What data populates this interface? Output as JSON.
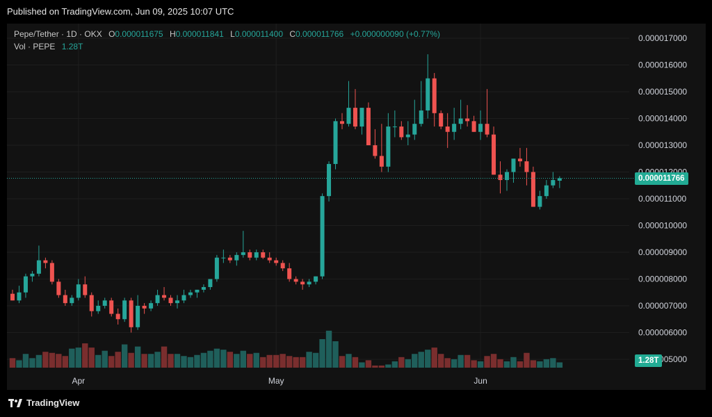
{
  "header": {
    "published": "Published on TradingView.com, Jun 09, 2025 10:07 UTC"
  },
  "legend": {
    "symbol": "Pepe/Tether · 1D · OKX",
    "o_label": "O",
    "o_value": "0.000011675",
    "h_label": "H",
    "h_value": "0.000011841",
    "l_label": "L",
    "l_value": "0.000011400",
    "c_label": "C",
    "c_value": "0.000011766",
    "change": "+0.000000090 (+0.77%)",
    "vol_label": "Vol · PEPE",
    "vol_value": "1.28T"
  },
  "badges": {
    "price": "0.000011766",
    "volume": "1.28T"
  },
  "footer": {
    "brand": "TradingView"
  },
  "colors": {
    "up": "#26a69a",
    "down": "#ef5350",
    "vol_up": "#1f5f5b",
    "vol_down": "#7a2e2e",
    "badge": "#22ab94"
  },
  "chart_data": {
    "type": "candlestick",
    "y_ticks": [
      "0.000017000",
      "0.000016000",
      "0.000015000",
      "0.000014000",
      "0.000013000",
      "0.000012000",
      "0.000011000",
      "0.000010000",
      "0.000009000",
      "0.000008000",
      "0.000007000",
      "0.000006000",
      "0.000005000"
    ],
    "x_ticks": [
      {
        "label": "Apr",
        "index": 10
      },
      {
        "label": "May",
        "index": 40
      },
      {
        "label": "Jun",
        "index": 71
      }
    ],
    "last_price": 11.766,
    "price_unit": "1e-6 USDT",
    "ohlc_scale": "values ×1e-6",
    "ohlcv": [
      [
        7.45,
        7.6,
        7.2,
        7.2,
        5.2
      ],
      [
        7.2,
        7.75,
        7.1,
        7.5,
        5.0
      ],
      [
        7.5,
        8.2,
        7.3,
        8.1,
        5.6
      ],
      [
        8.1,
        8.3,
        7.9,
        8.2,
        5.2
      ],
      [
        8.2,
        9.25,
        8.1,
        8.7,
        5.5
      ],
      [
        8.7,
        8.8,
        8.4,
        8.6,
        5.8
      ],
      [
        8.6,
        8.7,
        7.8,
        7.9,
        5.7
      ],
      [
        7.9,
        8.0,
        7.3,
        7.4,
        5.6
      ],
      [
        7.4,
        7.6,
        7.0,
        7.1,
        5.4
      ],
      [
        7.1,
        7.4,
        7.0,
        7.3,
        6.1
      ],
      [
        7.3,
        8.0,
        7.2,
        7.8,
        6.2
      ],
      [
        7.8,
        8.1,
        7.3,
        7.4,
        6.6
      ],
      [
        7.4,
        7.5,
        6.6,
        6.8,
        6.2
      ],
      [
        6.8,
        7.2,
        6.7,
        7.0,
        5.5
      ],
      [
        7.0,
        7.3,
        6.9,
        7.2,
        5.9
      ],
      [
        7.2,
        7.3,
        6.6,
        6.7,
        5.4
      ],
      [
        6.7,
        6.9,
        6.3,
        6.5,
        5.8
      ],
      [
        6.5,
        7.3,
        6.4,
        7.2,
        6.5
      ],
      [
        7.2,
        7.3,
        6.0,
        6.2,
        5.7
      ],
      [
        6.2,
        7.4,
        6.1,
        7.0,
        6.3
      ],
      [
        7.0,
        7.1,
        6.7,
        6.9,
        5.6
      ],
      [
        6.9,
        7.2,
        6.8,
        7.1,
        5.6
      ],
      [
        7.1,
        7.6,
        7.0,
        7.4,
        5.8
      ],
      [
        7.4,
        7.7,
        7.2,
        7.3,
        6.3
      ],
      [
        7.3,
        7.4,
        7.0,
        7.1,
        5.6
      ],
      [
        7.1,
        7.4,
        6.9,
        7.2,
        5.6
      ],
      [
        7.2,
        7.6,
        7.1,
        7.4,
        5.4
      ],
      [
        7.4,
        7.6,
        7.3,
        7.5,
        5.3
      ],
      [
        7.5,
        7.6,
        7.3,
        7.6,
        5.5
      ],
      [
        7.6,
        7.8,
        7.5,
        7.7,
        5.7
      ],
      [
        7.7,
        8.0,
        7.6,
        8.0,
        5.9
      ],
      [
        8.0,
        8.9,
        7.9,
        8.8,
        6.1
      ],
      [
        8.8,
        9.1,
        8.6,
        8.8,
        6.0
      ],
      [
        8.8,
        8.9,
        8.6,
        8.7,
        5.8
      ],
      [
        8.7,
        9.0,
        8.5,
        8.9,
        5.6
      ],
      [
        8.9,
        9.8,
        8.8,
        9.0,
        5.9
      ],
      [
        9.0,
        9.1,
        8.7,
        8.8,
        5.6
      ],
      [
        8.8,
        9.1,
        8.7,
        9.0,
        5.7
      ],
      [
        9.0,
        9.1,
        8.75,
        8.8,
        5.3
      ],
      [
        8.8,
        9.0,
        8.6,
        8.7,
        5.5
      ],
      [
        8.7,
        8.8,
        8.5,
        8.6,
        5.5
      ],
      [
        8.6,
        8.7,
        8.3,
        8.4,
        5.6
      ],
      [
        8.4,
        8.6,
        7.9,
        8.0,
        5.4
      ],
      [
        8.0,
        8.1,
        7.8,
        7.9,
        5.3
      ],
      [
        7.9,
        8.0,
        7.6,
        7.8,
        5.3
      ],
      [
        7.8,
        8.0,
        7.7,
        7.9,
        5.8
      ],
      [
        7.9,
        8.1,
        7.8,
        8.1,
        5.7
      ],
      [
        8.1,
        11.2,
        8.0,
        11.1,
        7.0
      ],
      [
        11.1,
        12.4,
        10.9,
        12.3,
        7.8
      ],
      [
        12.3,
        14.0,
        12.1,
        13.9,
        6.8
      ],
      [
        13.9,
        14.2,
        13.6,
        13.8,
        5.4
      ],
      [
        13.8,
        15.4,
        13.7,
        14.4,
        5.6
      ],
      [
        14.4,
        15.1,
        13.6,
        13.7,
        5.3
      ],
      [
        13.7,
        14.4,
        13.4,
        14.4,
        4.8
      ],
      [
        14.4,
        14.6,
        13.0,
        13.0,
        5.0
      ],
      [
        13.0,
        13.6,
        12.5,
        12.6,
        4.5
      ],
      [
        12.6,
        13.8,
        12.0,
        12.2,
        4.5
      ],
      [
        12.2,
        14.2,
        12.0,
        13.7,
        4.6
      ],
      [
        13.7,
        14.3,
        13.3,
        13.7,
        4.9
      ],
      [
        13.7,
        13.9,
        13.2,
        13.3,
        5.3
      ],
      [
        13.3,
        13.9,
        13.0,
        13.4,
        5.1
      ],
      [
        13.4,
        14.7,
        13.2,
        13.8,
        5.6
      ],
      [
        13.8,
        15.4,
        13.7,
        14.3,
        5.8
      ],
      [
        14.3,
        16.4,
        14.0,
        15.5,
        6.0
      ],
      [
        15.5,
        15.7,
        13.7,
        14.2,
        6.2
      ],
      [
        14.2,
        14.3,
        13.6,
        13.7,
        5.6
      ],
      [
        13.7,
        14.2,
        12.9,
        13.5,
        5.2
      ],
      [
        13.5,
        14.4,
        13.2,
        13.8,
        5.1
      ],
      [
        13.8,
        14.7,
        13.6,
        14.0,
        5.5
      ],
      [
        14.0,
        14.5,
        13.7,
        13.9,
        5.5
      ],
      [
        13.9,
        14.1,
        13.5,
        13.5,
        5.0
      ],
      [
        13.5,
        14.3,
        13.2,
        13.8,
        4.9
      ],
      [
        13.8,
        15.1,
        13.3,
        13.4,
        5.4
      ],
      [
        13.4,
        13.7,
        11.9,
        11.9,
        5.6
      ],
      [
        11.9,
        12.4,
        11.2,
        11.7,
        5.1
      ],
      [
        11.7,
        12.1,
        11.3,
        12.0,
        4.9
      ],
      [
        12.0,
        12.4,
        11.6,
        12.5,
        5.3
      ],
      [
        12.5,
        12.9,
        12.2,
        12.4,
        4.9
      ],
      [
        12.4,
        12.9,
        11.5,
        12.0,
        5.7
      ],
      [
        12.0,
        12.2,
        10.7,
        10.7,
        5.0
      ],
      [
        10.7,
        11.3,
        10.6,
        11.1,
        4.9
      ],
      [
        11.1,
        11.7,
        11.0,
        11.5,
        5.1
      ],
      [
        11.5,
        12.0,
        11.4,
        11.7,
        5.2
      ],
      [
        11.675,
        11.841,
        11.4,
        11.766,
        4.8
      ]
    ]
  }
}
